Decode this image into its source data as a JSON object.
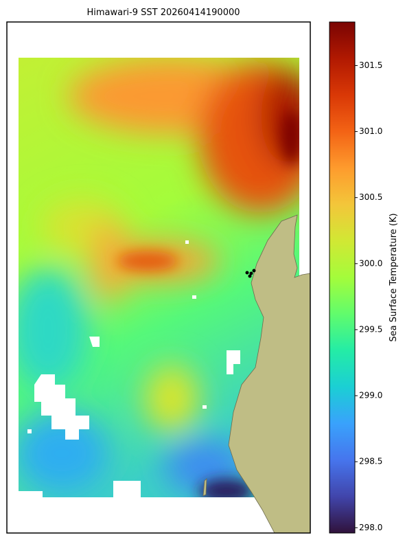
{
  "title": "Himawari-9 SST 20260414190000",
  "colorbar": {
    "label": "Sea Surface Temperature (K)",
    "lim": [
      297.96,
      301.83
    ],
    "ticks": [
      {
        "value": 298,
        "label": "298.0"
      },
      298.5,
      {
        "value": 299,
        "label": "299.0"
      },
      299.5,
      {
        "value": 300,
        "label": "300.0"
      },
      300.5,
      {
        "value": 301,
        "label": "301.0"
      },
      301.5
    ],
    "colormap": [
      "#30123b",
      "#4145ab",
      "#4675ed",
      "#39a2fc",
      "#1bcfd4",
      "#24eca6",
      "#61fc6c",
      "#a4fc3b",
      "#d1e834",
      "#f3c63a",
      "#fe9b2d",
      "#f36315",
      "#d93806",
      "#b11901",
      "#7a0403"
    ]
  }
}
